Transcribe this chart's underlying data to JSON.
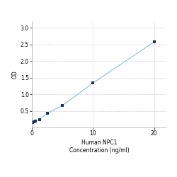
{
  "x_data": [
    0.156,
    0.313,
    0.625,
    1.25,
    2.5,
    5,
    10,
    20
  ],
  "y_data": [
    0.158,
    0.175,
    0.198,
    0.242,
    0.425,
    0.663,
    1.34,
    2.575
  ],
  "line_color": "#8bbfd9",
  "marker_color": "#1a3365",
  "marker_style": "s",
  "marker_size": 3.5,
  "xlabel_line1": "Human NPC1",
  "xlabel_line2": "Concentration (ng/ml)",
  "ylabel": "OD",
  "xlim": [
    0,
    22
  ],
  "ylim": [
    0.0,
    3.2
  ],
  "xticks": [
    0,
    10,
    20
  ],
  "yticks": [
    0.5,
    1.0,
    1.5,
    2.0,
    2.5,
    3.0
  ],
  "grid_color": "#d0d0d0",
  "grid_style": "--",
  "background_color": "#ffffff",
  "label_fontsize": 5.5,
  "tick_fontsize": 5.5,
  "linewidth": 0.8
}
